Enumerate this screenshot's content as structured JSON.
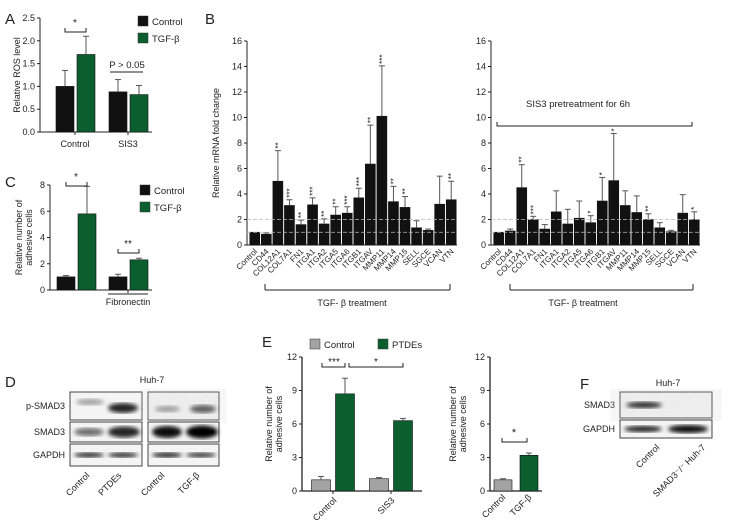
{
  "colors": {
    "black": "#111111",
    "green": "#0b5e2e",
    "gray": "#a3a3a3"
  },
  "chart_data": [
    {
      "panel_label": "A",
      "type": "bar",
      "ylabel": "Relative ROS level",
      "ylim": [
        0,
        2.5
      ],
      "ytick_labels": [
        "0.0",
        "0.5",
        "1.0",
        "1.5",
        "2.0",
        "2.5"
      ],
      "yticks": [
        0,
        0.5,
        1,
        1.5,
        2,
        2.5
      ],
      "categories": [
        "Control",
        "SIS3"
      ],
      "series": [
        {
          "name": "Control",
          "color": "#111111",
          "values": [
            1.0,
            0.88
          ],
          "errors": [
            0.35,
            0.27
          ]
        },
        {
          "name": "TGF-β",
          "color": "#0b5e2e",
          "values": [
            1.7,
            0.82
          ],
          "errors": [
            0.4,
            0.2
          ]
        }
      ],
      "annotations": [
        "*",
        "P > 0.05"
      ],
      "legend": "top-right"
    },
    {
      "panel_label": "C",
      "type": "bar",
      "ylabel": [
        "Relative number of",
        "adhesive cells"
      ],
      "ylim": [
        0,
        8
      ],
      "ytick_labels": [
        "0",
        "2",
        "4",
        "6",
        "8"
      ],
      "yticks": [
        0,
        2,
        4,
        6,
        8
      ],
      "categories": [
        "",
        "Fibronectin"
      ],
      "series": [
        {
          "name": "Control",
          "color": "#111111",
          "values": [
            1.0,
            1.0
          ],
          "errors": [
            0.1,
            0.2
          ]
        },
        {
          "name": "TGF-β",
          "color": "#0b5e2e",
          "values": [
            5.8,
            2.3
          ],
          "errors": [
            2.1,
            0.12
          ]
        }
      ],
      "annotations": [
        "*",
        "**"
      ],
      "legend": "top-right"
    },
    {
      "panel_label": "B",
      "type": "bar",
      "ylabel": "Relative mRNA fold change",
      "ylim": [
        0,
        16
      ],
      "ytick_labels": [
        "0",
        "2",
        "4",
        "6",
        "8",
        "10",
        "12",
        "14",
        "16"
      ],
      "yticks": [
        0,
        2,
        4,
        6,
        8,
        10,
        12,
        14,
        16
      ],
      "reference_lines": [
        1,
        2
      ],
      "categories": [
        "Control",
        "CD44",
        "COL12A1",
        "COL7A1",
        "FN1",
        "ITGA1",
        "ITGA2",
        "ITGA5",
        "ITGA6",
        "ITGB1",
        "ITGAV",
        "MMP11",
        "MMP14",
        "MMP15",
        "SELL",
        "SGCE",
        "VCAN",
        "VTN"
      ],
      "values": [
        1.0,
        0.85,
        5.0,
        3.1,
        1.6,
        3.15,
        1.65,
        2.35,
        2.5,
        3.7,
        6.35,
        10.1,
        3.4,
        2.95,
        1.35,
        1.15,
        3.2,
        3.55
      ],
      "errors": [
        0,
        0.1,
        2.4,
        0.45,
        0.35,
        0.55,
        0.4,
        0.65,
        0.5,
        0.75,
        3.05,
        3.95,
        1.2,
        0.85,
        0.55,
        0.1,
        2.2,
        1.45
      ],
      "significance": [
        "",
        "",
        "**",
        "***",
        "**",
        "***",
        "**",
        "**",
        "***",
        "***",
        "**",
        "***",
        "**",
        "**",
        "",
        "",
        "",
        "**"
      ],
      "bracket_label": "TGF- β treatment"
    },
    {
      "type": "bar",
      "ylim": [
        0,
        16
      ],
      "ytick_labels": [
        "0",
        "2",
        "4",
        "6",
        "8",
        "10",
        "12",
        "14",
        "16"
      ],
      "yticks": [
        0,
        2,
        4,
        6,
        8,
        10,
        12,
        14,
        16
      ],
      "reference_lines": [
        1,
        2
      ],
      "categories": [
        "Control",
        "CD44",
        "COL12A1",
        "COL7A1",
        "FN1",
        "ITGA1",
        "ITGA2",
        "ITGA5",
        "ITGA6",
        "ITGB1",
        "ITGAV",
        "MMP11",
        "MMP14",
        "MMP15",
        "SELL",
        "SGCE",
        "VCAN",
        "VTN"
      ],
      "values": [
        1.0,
        1.1,
        4.5,
        2.0,
        1.25,
        2.6,
        1.65,
        2.1,
        1.75,
        3.45,
        5.05,
        3.1,
        2.55,
        2.0,
        1.35,
        1.05,
        2.5,
        2.0
      ],
      "errors": [
        0,
        0.15,
        1.8,
        0.25,
        0.35,
        1.65,
        1.15,
        1.35,
        0.55,
        1.85,
        3.7,
        1.15,
        1.3,
        0.45,
        0.4,
        0.1,
        1.45,
        0.6
      ],
      "significance": [
        "",
        "",
        "**",
        "***",
        "",
        "",
        "",
        "",
        "*",
        "*",
        "*",
        "",
        "",
        "**",
        "",
        "",
        "",
        "*"
      ],
      "top_bracket_label": "SIS3 pretreatment for 6h",
      "bracket_label": "TGF- β treatment"
    },
    {
      "panel_label": "E",
      "type": "bar",
      "ylabel": [
        "Relative number of",
        "adhesive cells"
      ],
      "ylim": [
        0,
        12
      ],
      "ytick_labels": [
        "0",
        "3",
        "6",
        "9",
        "12"
      ],
      "yticks": [
        0,
        3,
        6,
        9,
        12
      ],
      "categories": [
        "Control",
        "SIS3"
      ],
      "series": [
        {
          "name": "Control",
          "color": "#a3a3a3",
          "values": [
            1.0,
            1.1
          ],
          "errors": [
            0.3,
            0.1
          ]
        },
        {
          "name": "PTDEs",
          "color": "#0b5e2e",
          "values": [
            8.7,
            6.3
          ],
          "errors": [
            1.4,
            0.2
          ]
        }
      ],
      "annotations": [
        "***",
        "*"
      ],
      "legend": "top"
    },
    {
      "type": "bar",
      "ylabel": [
        "Relative number of",
        "adhesive cells"
      ],
      "ylim": [
        0,
        12
      ],
      "ytick_labels": [
        "0",
        "3",
        "6",
        "9",
        "12"
      ],
      "yticks": [
        0,
        3,
        6,
        9,
        12
      ],
      "categories": [
        "Control",
        "TGF-β"
      ],
      "colors": [
        "#a3a3a3",
        "#0b5e2e"
      ],
      "values": [
        1.0,
        3.2
      ],
      "errors": [
        0.1,
        0.2
      ],
      "annotations": [
        "*"
      ]
    }
  ],
  "blots": {
    "D": {
      "panel_label": "D",
      "cell_line": "Huh-7",
      "rows": [
        "p-SMAD3",
        "SMAD3",
        "GAPDH"
      ],
      "lanes": [
        "Control",
        "PTDEs",
        "Control",
        "TGF-β"
      ]
    },
    "F": {
      "panel_label": "F",
      "cell_line": "Huh-7",
      "rows": [
        "SMAD3",
        "GAPDH"
      ],
      "lanes": [
        "Control",
        "SMAD3⁻/⁻ Huh-7"
      ]
    }
  }
}
